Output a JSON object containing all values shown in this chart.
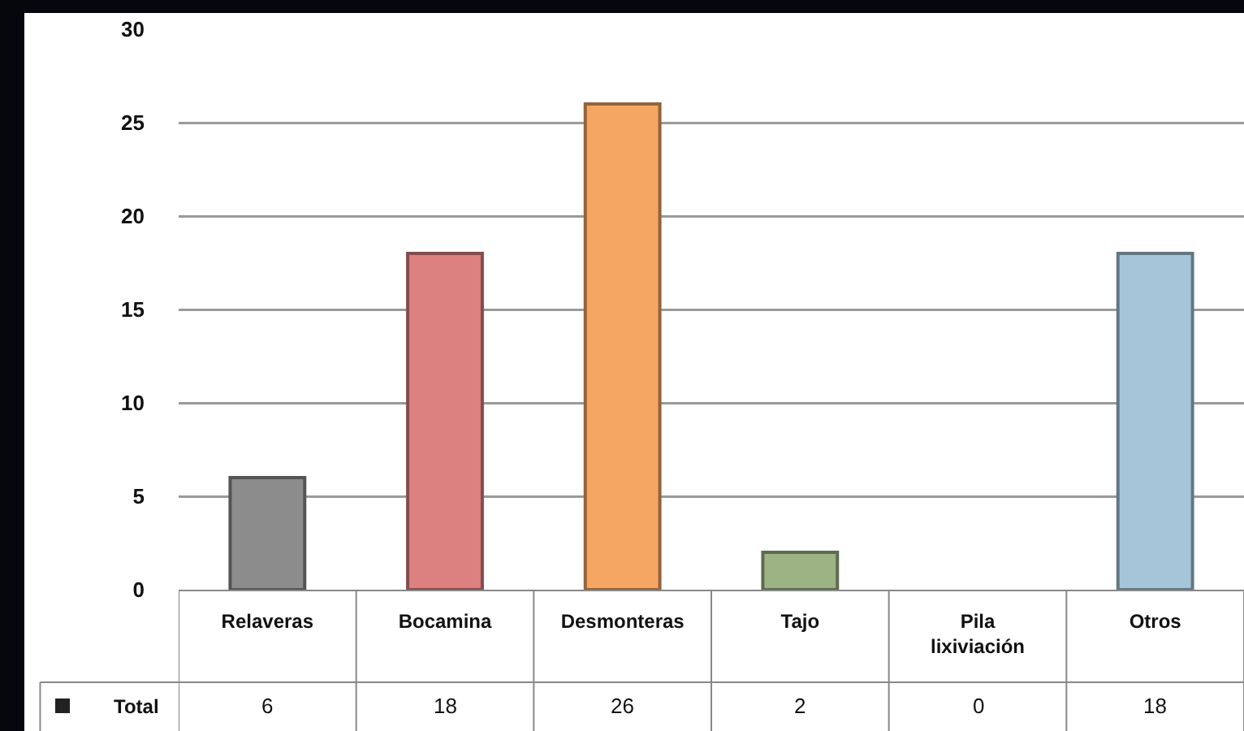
{
  "chart_data": {
    "type": "bar",
    "categories": [
      "Relaveras",
      "Bocamina",
      "Desmonteras",
      "Tajo",
      "Pila lixiviación",
      "Otros"
    ],
    "series": [
      {
        "name": "Total",
        "colors": [
          "#8c8c8c",
          "#dc8080",
          "#f5a662",
          "#9cb384",
          "#a9c6d6",
          "#a5c6d8"
        ],
        "values": [
          6,
          18,
          26,
          2,
          0,
          18
        ]
      }
    ],
    "ylim": [
      0,
      30
    ],
    "yticks": [
      0,
      5,
      10,
      15,
      20,
      25,
      30
    ],
    "grid": "y",
    "legend": false,
    "data_labels": true
  }
}
